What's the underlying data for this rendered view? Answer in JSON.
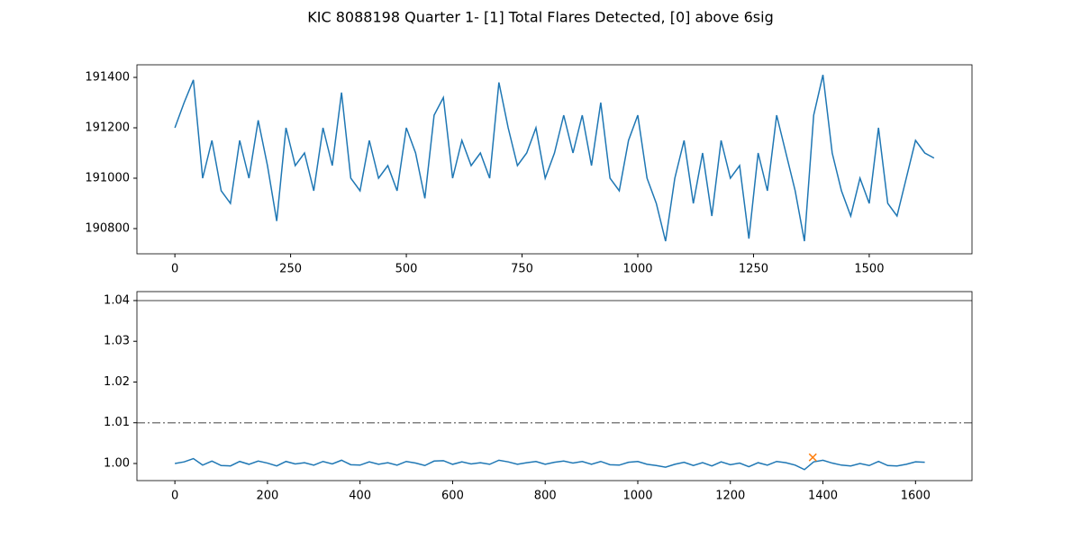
{
  "title": "KIC 8088198 Quarter 1- [1] Total Flares Detected, [0] above 6sig",
  "chart_data": [
    {
      "type": "line",
      "color": "#1f77b4",
      "x": [
        0,
        20,
        40,
        60,
        80,
        100,
        120,
        140,
        160,
        180,
        200,
        220,
        240,
        260,
        280,
        300,
        320,
        340,
        360,
        380,
        400,
        420,
        440,
        460,
        480,
        500,
        520,
        540,
        560,
        580,
        600,
        620,
        640,
        660,
        680,
        700,
        720,
        740,
        760,
        780,
        800,
        820,
        840,
        860,
        880,
        900,
        920,
        940,
        960,
        980,
        1000,
        1020,
        1040,
        1060,
        1080,
        1100,
        1120,
        1140,
        1160,
        1180,
        1200,
        1220,
        1240,
        1260,
        1280,
        1300,
        1320,
        1340,
        1360,
        1380,
        1400,
        1420,
        1440,
        1460,
        1480,
        1500,
        1520,
        1540,
        1560,
        1580,
        1600,
        1620,
        1640
      ],
      "values": [
        191200,
        191300,
        191390,
        191000,
        191150,
        190950,
        190900,
        191150,
        191000,
        191230,
        191050,
        190830,
        191200,
        191050,
        191100,
        190950,
        191200,
        191050,
        191340,
        191000,
        190950,
        191150,
        191000,
        191050,
        190950,
        191200,
        191100,
        190920,
        191250,
        191320,
        191000,
        191150,
        191050,
        191100,
        191000,
        191380,
        191200,
        191050,
        191100,
        191200,
        191000,
        191100,
        191250,
        191100,
        191250,
        191050,
        191300,
        191000,
        190950,
        191150,
        191250,
        191000,
        190900,
        190750,
        191000,
        191150,
        190900,
        191100,
        190850,
        191150,
        191000,
        191050,
        190760,
        191100,
        190950,
        191250,
        191100,
        190950,
        190750,
        191250,
        191410,
        191100,
        190950,
        190850,
        191000,
        190900,
        191200,
        190900,
        190850,
        191000,
        191150,
        191100,
        191080
      ],
      "xlim": [
        -82,
        1722
      ],
      "ylim": [
        190700,
        191450
      ],
      "xticks": [
        0,
        250,
        500,
        750,
        1000,
        1250,
        1500
      ],
      "yticks": [
        190800,
        191000,
        191200,
        191400
      ]
    },
    {
      "type": "line",
      "color": "#1f77b4",
      "x": [
        0,
        20,
        40,
        60,
        80,
        100,
        120,
        140,
        160,
        180,
        200,
        220,
        240,
        260,
        280,
        300,
        320,
        340,
        360,
        380,
        400,
        420,
        440,
        460,
        480,
        500,
        520,
        540,
        560,
        580,
        600,
        620,
        640,
        660,
        680,
        700,
        720,
        740,
        760,
        780,
        800,
        820,
        840,
        860,
        880,
        900,
        920,
        940,
        960,
        980,
        1000,
        1020,
        1040,
        1060,
        1080,
        1100,
        1120,
        1140,
        1160,
        1180,
        1200,
        1220,
        1240,
        1260,
        1280,
        1300,
        1320,
        1340,
        1360,
        1380,
        1400,
        1420,
        1440,
        1460,
        1480,
        1500,
        1520,
        1540,
        1560,
        1580,
        1600,
        1620
      ],
      "values": [
        1.0,
        1.0004,
        1.0012,
        0.9996,
        1.0006,
        0.9995,
        0.9994,
        1.0005,
        0.9998,
        1.0006,
        1.0001,
        0.9994,
        1.0005,
        0.9999,
        1.0002,
        0.9996,
        1.0005,
        0.9999,
        1.0008,
        0.9997,
        0.9996,
        1.0004,
        0.9998,
        1.0002,
        0.9996,
        1.0005,
        1.0001,
        0.9995,
        1.0006,
        1.0007,
        0.9998,
        1.0004,
        0.9999,
        1.0002,
        0.9998,
        1.0008,
        1.0004,
        0.9998,
        1.0002,
        1.0005,
        0.9998,
        1.0003,
        1.0006,
        1.0001,
        1.0005,
        0.9998,
        1.0005,
        0.9997,
        0.9996,
        1.0003,
        1.0005,
        0.9998,
        0.9995,
        0.9991,
        0.9998,
        1.0003,
        0.9995,
        1.0002,
        0.9994,
        1.0004,
        0.9997,
        1.0001,
        0.9992,
        1.0002,
        0.9996,
        1.0005,
        1.0002,
        0.9996,
        0.9985,
        1.0004,
        1.0008,
        1.0001,
        0.9996,
        0.9994,
        1.0,
        0.9995,
        1.0005,
        0.9995,
        0.9994,
        0.9998,
        1.0004,
        1.0003
      ],
      "markers": {
        "color": "#ff7f0e",
        "x": [
          1378
        ],
        "values": [
          1.0015
        ]
      },
      "hlines": [
        {
          "value": 1.04,
          "style": "solid",
          "color": "#808080"
        },
        {
          "value": 1.01,
          "style": "dashdot",
          "color": "#808080"
        }
      ],
      "xlim": [
        -82,
        1722
      ],
      "ylim": [
        0.9958,
        1.0422
      ],
      "xticks": [
        0,
        200,
        400,
        600,
        800,
        1000,
        1200,
        1400,
        1600
      ],
      "yticks": [
        {
          "value": 1,
          "label": "1.00"
        },
        1.01,
        1.02,
        1.03,
        1.04
      ]
    }
  ]
}
